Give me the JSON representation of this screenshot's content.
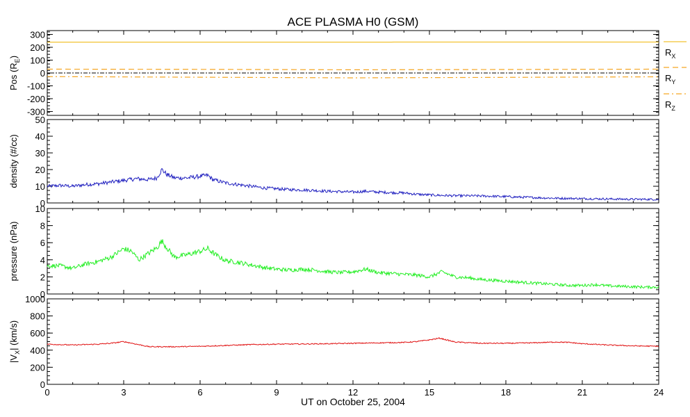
{
  "title": "ACE PLASMA H0 (GSM)",
  "xlabel": "UT on October 25, 2004",
  "x_ticks": [
    0,
    3,
    6,
    9,
    12,
    15,
    18,
    21,
    24
  ],
  "xlim": [
    0,
    24
  ],
  "colors": {
    "position": "#f5a623",
    "rx": "#f2c230",
    "density": "#1f1fbf",
    "pressure": "#22ee22",
    "velocity": "#e01010",
    "axis": "#000000"
  },
  "chart_data": [
    {
      "type": "line",
      "id": "pos",
      "ylabel": "Pos (RE)",
      "ylabel_main": "Pos (R",
      "ylabel_sub": "E",
      "ylabel_end": ")",
      "ylim": [
        -330,
        330
      ],
      "y_ticks": [
        300,
        200,
        100,
        0,
        -100,
        -200,
        -300
      ],
      "zero_line": true,
      "legend_placement": "right",
      "series": [
        {
          "name": "RX",
          "label_main": "R",
          "label_sub": "X",
          "style": "solid",
          "color_key": "rx",
          "x": [
            0,
            13.5,
            13.6,
            24
          ],
          "y": [
            240,
            240,
            241,
            241
          ]
        },
        {
          "name": "RY",
          "label_main": "R",
          "label_sub": "Y",
          "style": "dashed",
          "color_key": "position",
          "x": [
            0,
            6,
            12,
            18,
            24
          ],
          "y": [
            30,
            28,
            25,
            27,
            30
          ]
        },
        {
          "name": "RZ",
          "label_main": "R",
          "label_sub": "Z",
          "style": "dashdot",
          "color_key": "position",
          "x": [
            0,
            6,
            12,
            18,
            24
          ],
          "y": [
            -28,
            -33,
            -38,
            -34,
            -30
          ]
        }
      ]
    },
    {
      "type": "line",
      "id": "density",
      "ylabel": "density (#/cc)",
      "ylim": [
        0,
        50
      ],
      "y_ticks": [
        0,
        10,
        20,
        30,
        40,
        50
      ],
      "color_key": "density",
      "noise": 1.0,
      "x": [
        0,
        0.5,
        1,
        1.5,
        2,
        2.5,
        3,
        3.5,
        4,
        4.3,
        4.5,
        4.7,
        5,
        5.5,
        6,
        6.3,
        6.5,
        7,
        7.5,
        8,
        8.5,
        9,
        9.5,
        10,
        10.5,
        11,
        11.5,
        12,
        12.5,
        13,
        13.5,
        14,
        14.5,
        15,
        15.5,
        16,
        16.5,
        17,
        17.5,
        18,
        18.5,
        19,
        19.5,
        20,
        20.5,
        21,
        21.5,
        22,
        22.5,
        23,
        23.5,
        24
      ],
      "y": [
        10,
        10.5,
        10,
        11,
        11.5,
        12.5,
        13.5,
        14.5,
        14,
        15,
        20,
        17,
        15,
        15,
        16,
        16.5,
        14,
        12,
        11,
        10,
        9,
        8.5,
        8,
        7.8,
        7.5,
        7,
        6.8,
        6.5,
        7,
        6.5,
        6.2,
        6,
        5.2,
        4.8,
        4.5,
        4.3,
        4.3,
        4.2,
        4,
        3.8,
        3.5,
        3.3,
        3,
        2.8,
        2.7,
        2.6,
        2.5,
        2.4,
        2.3,
        2.2,
        2.2,
        2.1
      ]
    },
    {
      "type": "line",
      "id": "pressure",
      "ylabel": "pressure (nPa)",
      "ylim": [
        0,
        10
      ],
      "y_ticks": [
        0,
        2,
        4,
        6,
        8,
        10
      ],
      "color_key": "pressure",
      "noise": 0.25,
      "x": [
        0,
        0.5,
        1,
        1.5,
        2,
        2.5,
        3,
        3.3,
        3.6,
        4,
        4.3,
        4.5,
        4.8,
        5,
        5.5,
        6,
        6.3,
        6.6,
        7,
        7.5,
        8,
        8.5,
        9,
        9.5,
        10,
        10.5,
        11,
        11.5,
        12,
        12.5,
        13,
        13.5,
        14,
        14.5,
        15,
        15.5,
        16,
        16.5,
        17,
        17.5,
        18,
        18.5,
        19,
        19.5,
        20,
        20.5,
        21,
        21.5,
        22,
        22.5,
        23,
        23.5,
        24
      ],
      "y": [
        3.3,
        3.3,
        3.0,
        3.5,
        3.8,
        4.3,
        5.3,
        5.0,
        4.0,
        4.8,
        5.4,
        6.2,
        5.0,
        4.3,
        4.6,
        5.0,
        5.3,
        4.6,
        3.9,
        3.7,
        3.4,
        3.1,
        2.9,
        2.8,
        2.9,
        2.8,
        2.6,
        2.5,
        2.6,
        2.9,
        2.5,
        2.4,
        2.3,
        2.2,
        2.0,
        2.6,
        2.0,
        1.9,
        1.7,
        1.6,
        1.5,
        1.4,
        1.3,
        1.2,
        1.1,
        1.0,
        1.0,
        1.1,
        0.95,
        0.9,
        0.85,
        0.8,
        0.8
      ]
    },
    {
      "type": "line",
      "id": "velocity",
      "ylabel": "|VX| (km/s)",
      "ylabel_main": "|V",
      "ylabel_sub": "X",
      "ylabel_end": "| (km/s)",
      "ylim": [
        0,
        1000
      ],
      "y_ticks": [
        0,
        200,
        400,
        600,
        800,
        1000
      ],
      "color_key": "velocity",
      "noise": 6,
      "x": [
        0,
        1,
        2,
        2.5,
        3,
        3.5,
        4,
        5,
        6,
        7,
        8,
        9,
        10,
        11,
        12,
        13,
        14,
        14.5,
        15,
        15.4,
        16,
        17,
        18,
        19,
        20,
        20.5,
        21,
        22,
        23,
        24
      ],
      "y": [
        470,
        460,
        470,
        480,
        500,
        470,
        440,
        440,
        445,
        455,
        465,
        470,
        472,
        475,
        480,
        485,
        490,
        500,
        520,
        540,
        495,
        480,
        480,
        485,
        495,
        490,
        475,
        460,
        450,
        445
      ]
    }
  ]
}
